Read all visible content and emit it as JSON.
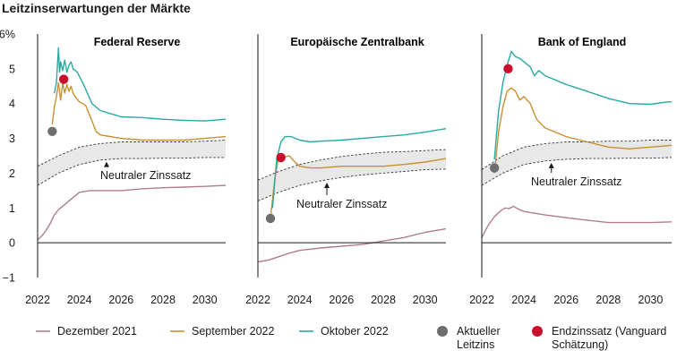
{
  "title": "Leitzinserwartungen der Märkte",
  "y_unit_suffix": "%",
  "colors": {
    "dez2021": "#b07c95",
    "sep2022": "#c8902e",
    "okt2022": "#2aa9a3",
    "aktueller": "#6e6e6e",
    "endzins": "#c8102e",
    "band_fill": "#e8e8e8",
    "axis": "#1a1a1a"
  },
  "legend": [
    {
      "key": "dez2021",
      "label_lines": [
        "Dezember 2021"
      ],
      "kind": "line"
    },
    {
      "key": "sep2022",
      "label_lines": [
        "September 2022"
      ],
      "kind": "line"
    },
    {
      "key": "okt2022",
      "label_lines": [
        "Oktober 2022"
      ],
      "kind": "line"
    },
    {
      "key": "aktueller",
      "label_lines": [
        "Aktueller",
        "Leitzins"
      ],
      "kind": "dot"
    },
    {
      "key": "endzins",
      "label_lines": [
        "Endzinssatz (Vanguard",
        "Schätzung)"
      ],
      "kind": "dot"
    }
  ],
  "chart_data": [
    {
      "type": "line",
      "title": "Federal Reserve",
      "xlim": [
        2022,
        2031
      ],
      "ylim": [
        -1,
        6
      ],
      "x_ticks": [
        2022,
        2024,
        2026,
        2028,
        2030
      ],
      "y_ticks": [
        -1,
        0,
        1,
        2,
        3,
        4,
        5,
        6
      ],
      "neutral_label": "Neutraler Zinssatz",
      "neutral_band": {
        "x": [
          2022,
          2023,
          2024,
          2025,
          2026,
          2027,
          2028,
          2029,
          2030,
          2031
        ],
        "upper": [
          2.2,
          2.5,
          2.75,
          2.85,
          2.9,
          2.9,
          2.9,
          2.9,
          2.92,
          2.95
        ],
        "lower": [
          1.65,
          2.0,
          2.25,
          2.38,
          2.42,
          2.42,
          2.43,
          2.43,
          2.45,
          2.45
        ]
      },
      "series": [
        {
          "key": "dez2021",
          "x": [
            2022.0,
            2022.2,
            2022.4,
            2022.6,
            2022.8,
            2023.0,
            2023.3,
            2023.6,
            2024.0,
            2024.5,
            2025.0,
            2026.0,
            2027.0,
            2028.0,
            2029.0,
            2030.0,
            2031.0
          ],
          "y": [
            0.08,
            0.2,
            0.35,
            0.55,
            0.8,
            0.95,
            1.1,
            1.25,
            1.45,
            1.5,
            1.5,
            1.5,
            1.55,
            1.58,
            1.6,
            1.62,
            1.65
          ]
        },
        {
          "key": "sep2022",
          "x": [
            2022.7,
            2022.8,
            2022.9,
            2023.0,
            2023.1,
            2023.2,
            2023.3,
            2023.4,
            2023.5,
            2023.6,
            2023.7,
            2023.8,
            2024.0,
            2024.3,
            2024.6,
            2024.8,
            2025.0,
            2026.0,
            2027.0,
            2028.0,
            2029.0,
            2030.0,
            2031.0
          ],
          "y": [
            3.4,
            3.9,
            4.2,
            4.6,
            4.1,
            4.6,
            4.3,
            4.55,
            4.35,
            4.5,
            4.3,
            4.2,
            4.05,
            3.95,
            3.5,
            3.2,
            3.1,
            3.0,
            2.95,
            2.95,
            2.95,
            3.0,
            3.05
          ]
        },
        {
          "key": "okt2022",
          "x": [
            2022.8,
            2022.9,
            2023.0,
            2023.05,
            2023.1,
            2023.2,
            2023.3,
            2023.4,
            2023.5,
            2023.6,
            2023.7,
            2023.9,
            2024.2,
            2024.6,
            2025.0,
            2026.0,
            2027.0,
            2028.0,
            2029.0,
            2030.0,
            2031.0
          ],
          "y": [
            4.3,
            4.6,
            5.6,
            4.9,
            5.2,
            4.95,
            5.25,
            4.9,
            5.1,
            5.2,
            5.0,
            4.9,
            4.55,
            4.0,
            3.8,
            3.62,
            3.6,
            3.55,
            3.52,
            3.5,
            3.55
          ]
        }
      ],
      "points": [
        {
          "key": "aktueller",
          "x": 2022.7,
          "y": 3.2
        },
        {
          "key": "endzins",
          "x": 2023.25,
          "y": 4.7
        }
      ]
    },
    {
      "type": "line",
      "title": "Europäische Zentralbank",
      "xlim": [
        2022,
        2031
      ],
      "ylim": [
        -1,
        6
      ],
      "x_ticks": [
        2022,
        2024,
        2026,
        2028,
        2030
      ],
      "neutral_label": "Neutraler Zinssatz",
      "neutral_band": {
        "x": [
          2022,
          2023,
          2024,
          2025,
          2026,
          2027,
          2028,
          2029,
          2030,
          2031
        ],
        "upper": [
          1.8,
          2.05,
          2.25,
          2.38,
          2.48,
          2.55,
          2.6,
          2.62,
          2.65,
          2.68
        ],
        "lower": [
          1.2,
          1.45,
          1.65,
          1.78,
          1.88,
          1.95,
          2.0,
          2.05,
          2.1,
          2.12
        ]
      },
      "series": [
        {
          "key": "dez2021",
          "x": [
            2022.0,
            2022.5,
            2023.0,
            2023.5,
            2024.0,
            2025.0,
            2026.0,
            2027.0,
            2028.0,
            2029.0,
            2030.0,
            2031.0
          ],
          "y": [
            -0.55,
            -0.5,
            -0.4,
            -0.3,
            -0.22,
            -0.15,
            -0.1,
            -0.05,
            0.05,
            0.15,
            0.3,
            0.4
          ]
        },
        {
          "key": "sep2022",
          "x": [
            2022.6,
            2022.8,
            2023.0,
            2023.2,
            2023.5,
            2023.8,
            2024.0,
            2024.5,
            2025.0,
            2026.0,
            2027.0,
            2028.0,
            2029.0,
            2030.0,
            2031.0
          ],
          "y": [
            0.7,
            1.8,
            2.5,
            2.45,
            2.5,
            2.3,
            2.2,
            2.15,
            2.15,
            2.2,
            2.2,
            2.2,
            2.25,
            2.32,
            2.42
          ]
        },
        {
          "key": "okt2022",
          "x": [
            2022.7,
            2022.9,
            2023.1,
            2023.3,
            2023.6,
            2024.0,
            2024.5,
            2025.0,
            2026.0,
            2027.0,
            2028.0,
            2029.0,
            2030.0,
            2031.0
          ],
          "y": [
            1.0,
            2.4,
            2.9,
            3.05,
            3.05,
            2.95,
            2.9,
            2.92,
            2.95,
            3.0,
            3.05,
            3.1,
            3.18,
            3.28
          ]
        }
      ],
      "points": [
        {
          "key": "aktueller",
          "x": 2022.6,
          "y": 0.7
        },
        {
          "key": "endzins",
          "x": 2023.1,
          "y": 2.45
        }
      ]
    },
    {
      "type": "line",
      "title": "Bank of England",
      "xlim": [
        2022,
        2031
      ],
      "ylim": [
        -1,
        6
      ],
      "x_ticks": [
        2022,
        2024,
        2026,
        2028,
        2030
      ],
      "neutral_label": "Neutraler Zinssatz",
      "neutral_band": {
        "x": [
          2022,
          2023,
          2024,
          2025,
          2026,
          2027,
          2028,
          2029,
          2030,
          2031
        ],
        "upper": [
          2.1,
          2.5,
          2.75,
          2.85,
          2.9,
          2.9,
          2.92,
          2.92,
          2.95,
          2.95
        ],
        "lower": [
          1.65,
          2.0,
          2.25,
          2.35,
          2.4,
          2.42,
          2.42,
          2.43,
          2.43,
          2.45
        ]
      },
      "series": [
        {
          "key": "dez2021",
          "x": [
            2022.0,
            2022.3,
            2022.6,
            2022.9,
            2023.1,
            2023.3,
            2023.5,
            2023.7,
            2024.0,
            2025.0,
            2026.0,
            2027.0,
            2028.0,
            2029.0,
            2030.0,
            2031.0
          ],
          "y": [
            0.15,
            0.5,
            0.75,
            0.92,
            1.0,
            0.98,
            1.05,
            0.98,
            0.9,
            0.8,
            0.72,
            0.65,
            0.58,
            0.58,
            0.58,
            0.6
          ]
        },
        {
          "key": "sep2022",
          "x": [
            2022.6,
            2022.8,
            2023.0,
            2023.2,
            2023.4,
            2023.6,
            2023.8,
            2024.0,
            2024.3,
            2024.6,
            2025.0,
            2026.0,
            2027.0,
            2028.0,
            2029.0,
            2030.0,
            2031.0
          ],
          "y": [
            2.0,
            3.2,
            3.9,
            4.35,
            4.45,
            4.35,
            4.1,
            4.2,
            4.0,
            3.55,
            3.3,
            3.05,
            2.9,
            2.75,
            2.7,
            2.75,
            2.8
          ]
        },
        {
          "key": "okt2022",
          "x": [
            2022.6,
            2022.8,
            2023.0,
            2023.2,
            2023.4,
            2023.6,
            2023.8,
            2024.0,
            2024.3,
            2024.5,
            2024.7,
            2025.0,
            2026.0,
            2027.0,
            2028.0,
            2029.0,
            2030.0,
            2030.8,
            2031.0
          ],
          "y": [
            2.4,
            3.8,
            4.6,
            5.1,
            5.5,
            5.35,
            5.3,
            5.2,
            5.05,
            4.8,
            4.95,
            4.8,
            4.55,
            4.35,
            4.15,
            4.0,
            3.98,
            4.05,
            4.05
          ]
        }
      ],
      "points": [
        {
          "key": "aktueller",
          "x": 2022.6,
          "y": 2.15
        },
        {
          "key": "endzins",
          "x": 2023.25,
          "y": 5.0
        }
      ]
    }
  ]
}
